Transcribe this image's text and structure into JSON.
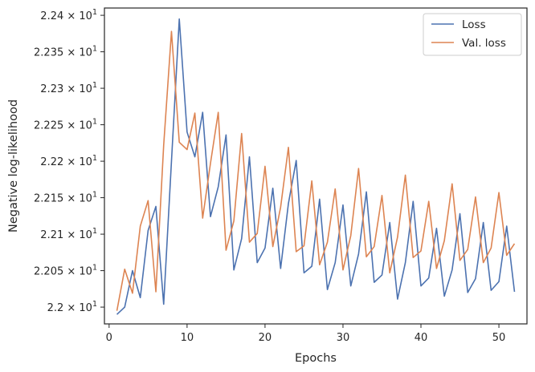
{
  "chart_data": {
    "type": "line",
    "xlabel": "Epochs",
    "ylabel": "Negative log-likelihood",
    "xlim": [
      -0.6,
      53.6
    ],
    "ylim": [
      21.977,
      22.41
    ],
    "xticks": [
      0,
      10,
      20,
      30,
      40,
      50
    ],
    "xtick_labels": [
      "0",
      "10",
      "20",
      "30",
      "40",
      "50"
    ],
    "yticks": [
      22.0,
      22.05,
      22.1,
      22.15,
      22.2,
      22.25,
      22.3,
      22.35,
      22.4
    ],
    "ytick_labels": [
      {
        "mant": "2.2",
        "exp": "1"
      },
      {
        "mant": "2.205",
        "exp": "1"
      },
      {
        "mant": "2.21",
        "exp": "1"
      },
      {
        "mant": "2.215",
        "exp": "1"
      },
      {
        "mant": "2.22",
        "exp": "1"
      },
      {
        "mant": "2.225",
        "exp": "1"
      },
      {
        "mant": "2.23",
        "exp": "1"
      },
      {
        "mant": "2.235",
        "exp": "1"
      },
      {
        "mant": "2.24",
        "exp": "1"
      }
    ],
    "legend_position": "top-right",
    "grid": false,
    "x": [
      1,
      2,
      3,
      4,
      5,
      6,
      7,
      8,
      9,
      10,
      11,
      12,
      13,
      14,
      15,
      16,
      17,
      18,
      19,
      20,
      21,
      22,
      23,
      24,
      25,
      26,
      27,
      28,
      29,
      30,
      31,
      32,
      33,
      34,
      35,
      36,
      37,
      38,
      39,
      40,
      41,
      42,
      43,
      44,
      45,
      46,
      47,
      48,
      49,
      50,
      51,
      52
    ],
    "series": [
      {
        "name": "Loss",
        "color": "#4c72b0",
        "values": [
          21.99,
          22.0,
          22.05,
          22.013,
          22.105,
          22.138,
          22.004,
          22.2,
          22.395,
          22.24,
          22.206,
          22.267,
          22.124,
          22.165,
          22.236,
          22.051,
          22.094,
          22.206,
          22.061,
          22.081,
          22.163,
          22.053,
          22.142,
          22.201,
          22.047,
          22.056,
          22.148,
          22.024,
          22.061,
          22.14,
          22.029,
          22.073,
          22.158,
          22.034,
          22.044,
          22.116,
          22.011,
          22.061,
          22.145,
          22.029,
          22.04,
          22.108,
          22.015,
          22.051,
          22.128,
          22.02,
          22.039,
          22.116,
          22.023,
          22.035,
          22.111,
          22.021
        ]
      },
      {
        "name": "Val. loss",
        "color": "#dd8452",
        "values": [
          21.995,
          22.052,
          22.019,
          22.111,
          22.146,
          22.021,
          22.222,
          22.378,
          22.226,
          22.216,
          22.266,
          22.122,
          22.197,
          22.267,
          22.078,
          22.118,
          22.238,
          22.089,
          22.101,
          22.193,
          22.083,
          22.137,
          22.219,
          22.076,
          22.084,
          22.173,
          22.058,
          22.089,
          22.162,
          22.051,
          22.098,
          22.19,
          22.069,
          22.083,
          22.153,
          22.047,
          22.096,
          22.181,
          22.068,
          22.077,
          22.145,
          22.053,
          22.091,
          22.169,
          22.064,
          22.079,
          22.151,
          22.061,
          22.081,
          22.157,
          22.071,
          22.087
        ]
      }
    ]
  }
}
